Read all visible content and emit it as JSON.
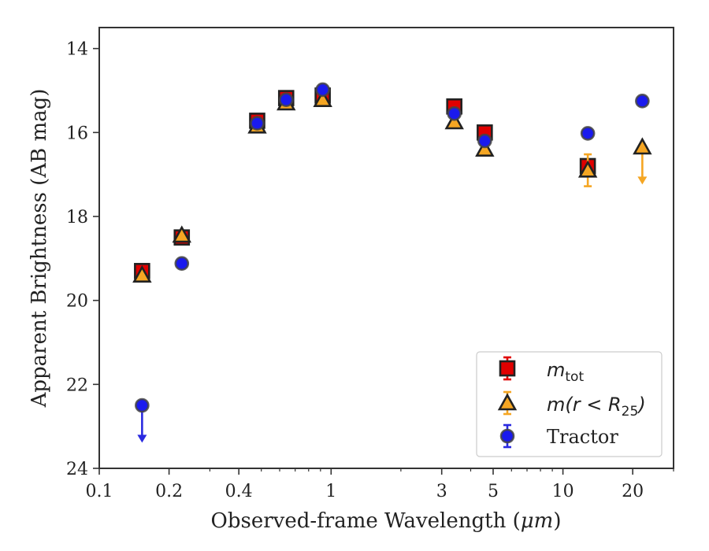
{
  "chart_data": {
    "type": "scatter",
    "xlabel_prefix": "Observed-frame Wavelength (",
    "xlabel_unit": "μm",
    "xlabel_suffix": ")",
    "ylabel": "Apparent Brightness (AB mag)",
    "x_scale": "log",
    "xlim": [
      0.1,
      30
    ],
    "ylim": [
      24,
      13.5
    ],
    "y_inverted": true,
    "grid": false,
    "legend_position": "lower-right",
    "x_ticks": [
      {
        "value": 0.1,
        "label": "0.1"
      },
      {
        "value": 0.2,
        "label": "0.2"
      },
      {
        "value": 0.4,
        "label": "0.4"
      },
      {
        "value": 1,
        "label": "1"
      },
      {
        "value": 3,
        "label": "3"
      },
      {
        "value": 5,
        "label": "5"
      },
      {
        "value": 10,
        "label": "10"
      },
      {
        "value": 20,
        "label": "20"
      }
    ],
    "x_minor_ticks": [
      0.3,
      0.5,
      0.6,
      0.7,
      0.8,
      0.9,
      2,
      4,
      6,
      7,
      8,
      9,
      30
    ],
    "y_ticks": [
      {
        "value": 14,
        "label": "14"
      },
      {
        "value": 16,
        "label": "16"
      },
      {
        "value": 18,
        "label": "18"
      },
      {
        "value": 20,
        "label": "20"
      },
      {
        "value": 22,
        "label": "22"
      },
      {
        "value": 24,
        "label": "24"
      }
    ],
    "series": [
      {
        "name_base": "m",
        "name_sub": "tot",
        "marker": "square",
        "fill": "#e00000",
        "edge": "#222222",
        "errcolor": "#e00000",
        "points": [
          {
            "x": 0.153,
            "y": 19.3,
            "err": 0.05
          },
          {
            "x": 0.227,
            "y": 18.5,
            "err": 0.05
          },
          {
            "x": 0.48,
            "y": 15.72,
            "err": 0.05
          },
          {
            "x": 0.64,
            "y": 15.18,
            "err": 0.05
          },
          {
            "x": 0.92,
            "y": 15.12,
            "err": 0.05
          },
          {
            "x": 3.4,
            "y": 15.38,
            "err": 0.05
          },
          {
            "x": 4.6,
            "y": 16.0,
            "err": 0.05
          },
          {
            "x": 12.8,
            "y": 16.8,
            "err": 0.08
          }
        ]
      },
      {
        "name_base": "m",
        "name_paren": "(r < R",
        "name_sub": "25",
        "name_close": ")",
        "marker": "triangle",
        "fill": "#f5a623",
        "edge": "#222222",
        "errcolor": "#f5a623",
        "points": [
          {
            "x": 0.153,
            "y": 19.4,
            "err": 0.05
          },
          {
            "x": 0.227,
            "y": 18.45,
            "err": 0.05
          },
          {
            "x": 0.48,
            "y": 15.85,
            "err": 0.05
          },
          {
            "x": 0.64,
            "y": 15.3,
            "err": 0.05
          },
          {
            "x": 0.92,
            "y": 15.22,
            "err": 0.05
          },
          {
            "x": 3.4,
            "y": 15.75,
            "err": 0.05
          },
          {
            "x": 4.6,
            "y": 16.4,
            "err": 0.05
          },
          {
            "x": 12.8,
            "y": 16.9,
            "err": 0.38
          },
          {
            "x": 22.0,
            "y": 16.35,
            "err": 0.0,
            "limit": 17.2
          }
        ]
      },
      {
        "name": "Tractor",
        "marker": "circle",
        "fill": "#1a1aee",
        "edge": "#444444",
        "errcolor": "#2a2ae0",
        "points": [
          {
            "x": 0.153,
            "y": 22.5,
            "err": 0.0,
            "limit": 23.35
          },
          {
            "x": 0.227,
            "y": 19.12,
            "err": 0.05
          },
          {
            "x": 0.48,
            "y": 15.78,
            "err": 0.05
          },
          {
            "x": 0.64,
            "y": 15.22,
            "err": 0.05
          },
          {
            "x": 0.92,
            "y": 14.98,
            "err": 0.05
          },
          {
            "x": 3.4,
            "y": 15.55,
            "err": 0.05
          },
          {
            "x": 4.6,
            "y": 16.2,
            "err": 0.05
          },
          {
            "x": 12.8,
            "y": 16.02,
            "err": 0.05
          },
          {
            "x": 22.0,
            "y": 15.25,
            "err": 0.05
          }
        ]
      }
    ]
  }
}
